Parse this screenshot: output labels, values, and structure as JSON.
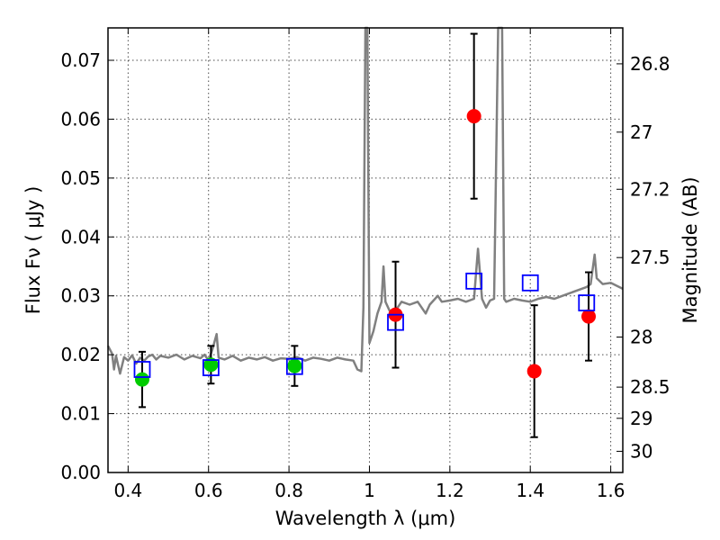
{
  "chart_data": {
    "type": "scatter",
    "xlabel": "Wavelength  λ (μm)",
    "ylabel": "Flux  Fν  ( μJy )",
    "y2label": "Magnitude (AB)",
    "xlim": [
      0.35,
      1.63
    ],
    "ylim": [
      0.0,
      0.0755
    ],
    "grid": true,
    "x_ticks": [
      0.4,
      0.6,
      0.8,
      1.0,
      1.2,
      1.4,
      1.6
    ],
    "x_tick_labels": [
      "0.4",
      "0.6",
      "0.8",
      "1",
      "1.2",
      "1.4",
      "1.6"
    ],
    "y_ticks": [
      0.0,
      0.01,
      0.02,
      0.03,
      0.04,
      0.05,
      0.06,
      0.07
    ],
    "y_tick_labels": [
      "0.00",
      "0.01",
      "0.02",
      "0.03",
      "0.04",
      "0.05",
      "0.06",
      "0.07"
    ],
    "y2_ticks": [
      {
        "label": "26.8",
        "flux": 0.0694
      },
      {
        "label": "27",
        "flux": 0.0578
      },
      {
        "label": "27.2",
        "flux": 0.0481
      },
      {
        "label": "27.5",
        "flux": 0.0365
      },
      {
        "label": "28",
        "flux": 0.023
      },
      {
        "label": "28.5",
        "flux": 0.0145
      },
      {
        "label": "29",
        "flux": 0.0092
      },
      {
        "label": "30",
        "flux": 0.0036
      }
    ],
    "series": [
      {
        "marker": "line",
        "color": "#808080",
        "points": [
          [
            0.35,
            0.0215
          ],
          [
            0.36,
            0.0202
          ],
          [
            0.365,
            0.0175
          ],
          [
            0.37,
            0.0198
          ],
          [
            0.38,
            0.0168
          ],
          [
            0.39,
            0.0196
          ],
          [
            0.4,
            0.019
          ],
          [
            0.41,
            0.0199
          ],
          [
            0.42,
            0.0185
          ],
          [
            0.43,
            0.0195
          ],
          [
            0.44,
            0.019
          ],
          [
            0.45,
            0.0197
          ],
          [
            0.46,
            0.02
          ],
          [
            0.47,
            0.0192
          ],
          [
            0.48,
            0.0198
          ],
          [
            0.5,
            0.0195
          ],
          [
            0.52,
            0.02
          ],
          [
            0.54,
            0.0192
          ],
          [
            0.56,
            0.0198
          ],
          [
            0.58,
            0.0194
          ],
          [
            0.59,
            0.02
          ],
          [
            0.6,
            0.019
          ],
          [
            0.61,
            0.021
          ],
          [
            0.62,
            0.0235
          ],
          [
            0.625,
            0.0195
          ],
          [
            0.64,
            0.0192
          ],
          [
            0.66,
            0.0198
          ],
          [
            0.68,
            0.019
          ],
          [
            0.7,
            0.0195
          ],
          [
            0.72,
            0.0192
          ],
          [
            0.74,
            0.0196
          ],
          [
            0.76,
            0.019
          ],
          [
            0.78,
            0.0194
          ],
          [
            0.8,
            0.0193
          ],
          [
            0.82,
            0.0196
          ],
          [
            0.84,
            0.019
          ],
          [
            0.86,
            0.0195
          ],
          [
            0.88,
            0.0193
          ],
          [
            0.9,
            0.019
          ],
          [
            0.92,
            0.0195
          ],
          [
            0.94,
            0.0192
          ],
          [
            0.96,
            0.019
          ],
          [
            0.97,
            0.0175
          ],
          [
            0.98,
            0.0172
          ],
          [
            0.985,
            0.028
          ],
          [
            0.99,
            0.0755
          ],
          [
            0.995,
            0.0755
          ],
          [
            1.0,
            0.022
          ],
          [
            1.01,
            0.024
          ],
          [
            1.02,
            0.027
          ],
          [
            1.03,
            0.029
          ],
          [
            1.035,
            0.035
          ],
          [
            1.04,
            0.029
          ],
          [
            1.05,
            0.0275
          ],
          [
            1.06,
            0.027
          ],
          [
            1.08,
            0.029
          ],
          [
            1.1,
            0.0285
          ],
          [
            1.12,
            0.029
          ],
          [
            1.14,
            0.027
          ],
          [
            1.15,
            0.0285
          ],
          [
            1.17,
            0.03
          ],
          [
            1.18,
            0.029
          ],
          [
            1.2,
            0.0292
          ],
          [
            1.22,
            0.0295
          ],
          [
            1.24,
            0.029
          ],
          [
            1.26,
            0.0295
          ],
          [
            1.27,
            0.038
          ],
          [
            1.28,
            0.0295
          ],
          [
            1.29,
            0.028
          ],
          [
            1.3,
            0.0292
          ],
          [
            1.31,
            0.0295
          ],
          [
            1.32,
            0.0755
          ],
          [
            1.33,
            0.0755
          ],
          [
            1.335,
            0.0295
          ],
          [
            1.34,
            0.029
          ],
          [
            1.36,
            0.0295
          ],
          [
            1.38,
            0.0292
          ],
          [
            1.4,
            0.029
          ],
          [
            1.42,
            0.0295
          ],
          [
            1.44,
            0.0298
          ],
          [
            1.46,
            0.0295
          ],
          [
            1.48,
            0.03
          ],
          [
            1.5,
            0.0305
          ],
          [
            1.52,
            0.031
          ],
          [
            1.54,
            0.0315
          ],
          [
            1.55,
            0.032
          ],
          [
            1.56,
            0.037
          ],
          [
            1.565,
            0.033
          ],
          [
            1.58,
            0.032
          ],
          [
            1.6,
            0.0322
          ],
          [
            1.63,
            0.0312
          ]
        ]
      },
      {
        "marker": "circle",
        "color": "#00cc00",
        "points": [
          {
            "x": 0.435,
            "y": 0.0158,
            "err": 0.0047
          },
          {
            "x": 0.606,
            "y": 0.0183,
            "err": 0.0032
          },
          {
            "x": 0.814,
            "y": 0.0181,
            "err": 0.0034
          }
        ]
      },
      {
        "marker": "circle",
        "color": "#ff0000",
        "points": [
          {
            "x": 1.065,
            "y": 0.0268,
            "err": 0.009
          },
          {
            "x": 1.26,
            "y": 0.0605,
            "err": 0.014
          },
          {
            "x": 1.41,
            "y": 0.0172,
            "err": 0.0112
          },
          {
            "x": 1.545,
            "y": 0.0265,
            "err": 0.0075
          }
        ]
      },
      {
        "marker": "square",
        "color": "#0000ff",
        "points": [
          {
            "x": 0.435,
            "y": 0.0175
          },
          {
            "x": 0.606,
            "y": 0.0178
          },
          {
            "x": 0.814,
            "y": 0.018
          },
          {
            "x": 1.065,
            "y": 0.0255
          },
          {
            "x": 1.26,
            "y": 0.0325
          },
          {
            "x": 1.4,
            "y": 0.0322
          },
          {
            "x": 1.54,
            "y": 0.0288
          }
        ]
      }
    ]
  }
}
